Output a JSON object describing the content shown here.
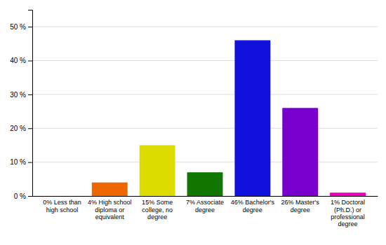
{
  "chart_data": {
    "type": "bar",
    "categories": [
      "0% Less than\nhigh school",
      "4% High school\ndiploma or\nequivalent",
      "15% Some\ncollege, no\ndegree",
      "7% Associate\ndegree",
      "46% Bachelor's\ndegree",
      "26% Master's\ndegree",
      "1% Doctoral\n(Ph.D.) or\nprofessional\ndegree"
    ],
    "values": [
      0,
      4,
      15,
      7,
      46,
      26,
      1
    ],
    "colors": [
      "#cc1111",
      "#ee6600",
      "#dddd00",
      "#117700",
      "#1111dd",
      "#7700cc",
      "#ee00bb"
    ],
    "ylim": [
      0,
      55
    ],
    "yticks": [
      {
        "value": 0,
        "label": "0 %"
      },
      {
        "value": 10,
        "label": "10 %"
      },
      {
        "value": 20,
        "label": "20 %"
      },
      {
        "value": 30,
        "label": "30 %"
      },
      {
        "value": 40,
        "label": "40 %"
      },
      {
        "value": 50,
        "label": "50 %"
      }
    ],
    "grid": true
  }
}
